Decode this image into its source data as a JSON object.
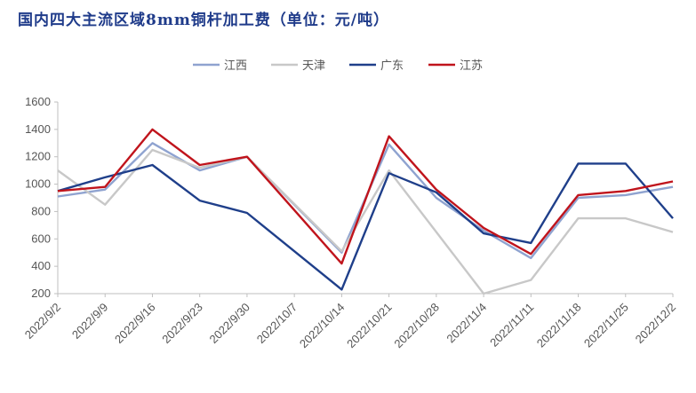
{
  "chart_data": {
    "type": "line",
    "title": "国内四大主流区域8mm铜杆加工费（单位：元/吨）",
    "x": [
      "2022/9/2",
      "2022/9/9",
      "2022/9/16",
      "2022/9/23",
      "2022/9/30",
      "2022/10/7",
      "2022/10/14",
      "2022/10/21",
      "2022/10/28",
      "2022/11/4",
      "2022/11/11",
      "2022/11/18",
      "2022/11/25",
      "2022/12/2"
    ],
    "ylim": [
      200,
      1600
    ],
    "yticks": [
      200,
      400,
      600,
      800,
      1000,
      1200,
      1400,
      1600
    ],
    "grid": false,
    "legend": "top-center",
    "series": [
      {
        "name": "江西",
        "color": "#8fa3d0",
        "values": [
          910,
          960,
          1300,
          1100,
          1200,
          null,
          500,
          1290,
          900,
          660,
          460,
          900,
          920,
          980
        ]
      },
      {
        "name": "天津",
        "color": "#c8c8c8",
        "values": [
          1100,
          850,
          1250,
          1120,
          1200,
          null,
          510,
          1100,
          null,
          200,
          300,
          750,
          750,
          650
        ]
      },
      {
        "name": "广东",
        "color": "#1f3f8a",
        "values": [
          950,
          1050,
          1140,
          880,
          790,
          null,
          230,
          1080,
          940,
          640,
          570,
          1150,
          1150,
          750
        ]
      },
      {
        "name": "江苏",
        "color": "#c0141c",
        "values": [
          950,
          980,
          1400,
          1140,
          1200,
          null,
          420,
          1350,
          960,
          680,
          490,
          920,
          950,
          1020
        ]
      }
    ]
  }
}
